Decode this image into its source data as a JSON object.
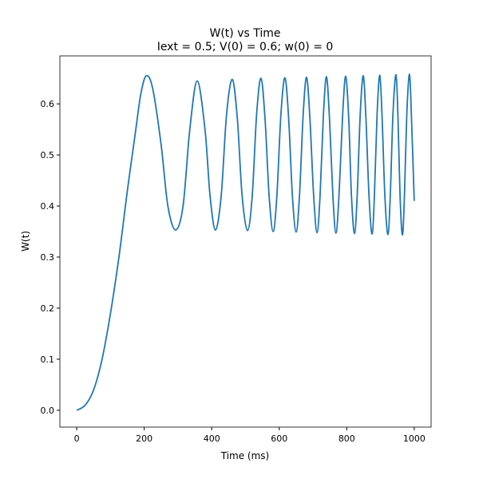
{
  "chart_data": {
    "type": "line",
    "title": "W(t) vs Time",
    "subtitle": "Iext = 0.5; V(0) = 0.6; w(0) = 0",
    "xlabel": "Time (ms)",
    "ylabel": "W(t)",
    "x": [
      0,
      25,
      50,
      75,
      100,
      125,
      150,
      175,
      190,
      206,
      225,
      250,
      270,
      293,
      315,
      335,
      357,
      380,
      395,
      411,
      428,
      444,
      461,
      476,
      490,
      506,
      520,
      533,
      546,
      558,
      570,
      582,
      593,
      605,
      617,
      628,
      639,
      650,
      660,
      671,
      681,
      691,
      702,
      712,
      721,
      731,
      740,
      749,
      759,
      768,
      777,
      788,
      797,
      806,
      814,
      823,
      831,
      840,
      849,
      857,
      866,
      875,
      882,
      890,
      898,
      905,
      913,
      922,
      929,
      937,
      946,
      952,
      958,
      965,
      971,
      978,
      986,
      992,
      1000
    ],
    "series": [
      {
        "name": "W(t)",
        "color": "#1f77b4",
        "values": [
          0.0,
          0.01,
          0.04,
          0.1,
          0.19,
          0.3,
          0.43,
          0.55,
          0.62,
          0.655,
          0.63,
          0.52,
          0.4,
          0.353,
          0.4,
          0.55,
          0.645,
          0.55,
          0.42,
          0.353,
          0.42,
          0.58,
          0.648,
          0.57,
          0.42,
          0.352,
          0.42,
          0.58,
          0.65,
          0.57,
          0.42,
          0.35,
          0.42,
          0.58,
          0.651,
          0.57,
          0.42,
          0.349,
          0.42,
          0.58,
          0.652,
          0.57,
          0.42,
          0.348,
          0.42,
          0.58,
          0.653,
          0.57,
          0.42,
          0.347,
          0.42,
          0.58,
          0.654,
          0.57,
          0.42,
          0.346,
          0.42,
          0.58,
          0.655,
          0.57,
          0.42,
          0.345,
          0.42,
          0.58,
          0.656,
          0.57,
          0.42,
          0.344,
          0.42,
          0.58,
          0.657,
          0.57,
          0.42,
          0.343,
          0.42,
          0.58,
          0.658,
          0.57,
          0.41
        ]
      }
    ],
    "xlim": [
      -50,
      1050
    ],
    "ylim": [
      -0.033,
      0.694
    ],
    "xticks": [
      0,
      200,
      400,
      600,
      800,
      1000
    ],
    "yticks": [
      {
        "value": 0,
        "label": "0.0"
      },
      0.1,
      0.2,
      0.3,
      0.4,
      0.5,
      0.6
    ]
  }
}
